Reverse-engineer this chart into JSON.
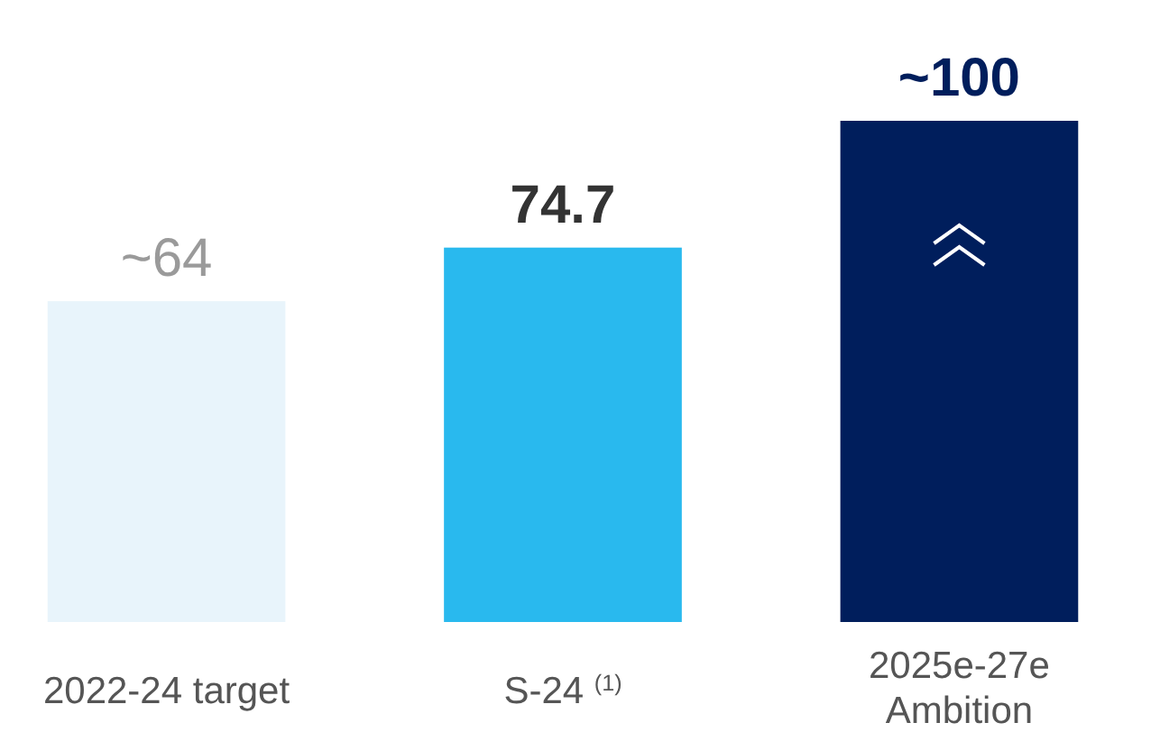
{
  "chart_data": {
    "type": "bar",
    "categories": [
      "2022-24 target",
      "S-24 $^{(1)}$",
      "2025e-27e\nAmbition"
    ],
    "values": [
      64,
      74.7,
      100
    ],
    "colors": [
      "#e8f4fb",
      "#29b9ee",
      "#001e5c"
    ],
    "value_labels": [
      "~64",
      "74.7",
      "~100"
    ]
  }
}
